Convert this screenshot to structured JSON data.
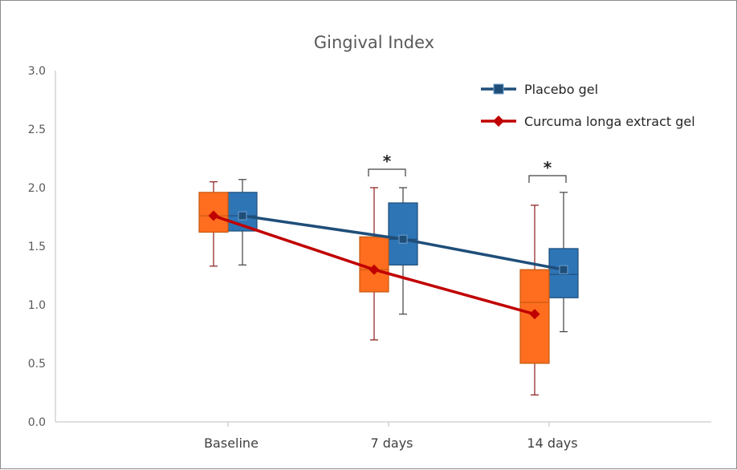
{
  "chart_data": {
    "type": "box",
    "title": "Gingival Index",
    "xlabel": "",
    "ylabel": "",
    "ylim": [
      0,
      3
    ],
    "yticks": [
      "0.0",
      "0.5",
      "1.0",
      "1.5",
      "2.0",
      "2.5",
      "3.0"
    ],
    "categories": [
      "Baseline",
      "7 days",
      "14 days"
    ],
    "grid": false,
    "legend_position": "top-right",
    "series": [
      {
        "name": "Placebo gel",
        "line_color": "#1f4e79",
        "box_color": "#2e75b6",
        "marker": "square",
        "means": [
          1.76,
          1.56,
          1.3
        ],
        "boxes": [
          {
            "min": 1.34,
            "q1": 1.63,
            "median": 1.76,
            "q3": 1.96,
            "max": 2.07
          },
          {
            "min": 0.92,
            "q1": 1.34,
            "median": 1.56,
            "q3": 1.87,
            "max": 2.0
          },
          {
            "min": 0.77,
            "q1": 1.06,
            "median": 1.26,
            "q3": 1.48,
            "max": 1.96
          }
        ]
      },
      {
        "name": "Curcuma longa extract gel",
        "line_color": "#c00000",
        "box_color": "#ff6d1f",
        "marker": "diamond",
        "means": [
          1.76,
          1.3,
          0.92
        ],
        "boxes": [
          {
            "min": 1.33,
            "q1": 1.62,
            "median": 1.76,
            "q3": 1.96,
            "max": 2.05
          },
          {
            "min": 0.7,
            "q1": 1.11,
            "median": 1.3,
            "q3": 1.58,
            "max": 2.0
          },
          {
            "min": 0.23,
            "q1": 0.5,
            "median": 1.02,
            "q3": 1.3,
            "max": 1.85
          }
        ]
      }
    ],
    "annotations": [
      {
        "category": "7 days",
        "text": "*"
      },
      {
        "category": "14 days",
        "text": "*"
      }
    ]
  }
}
